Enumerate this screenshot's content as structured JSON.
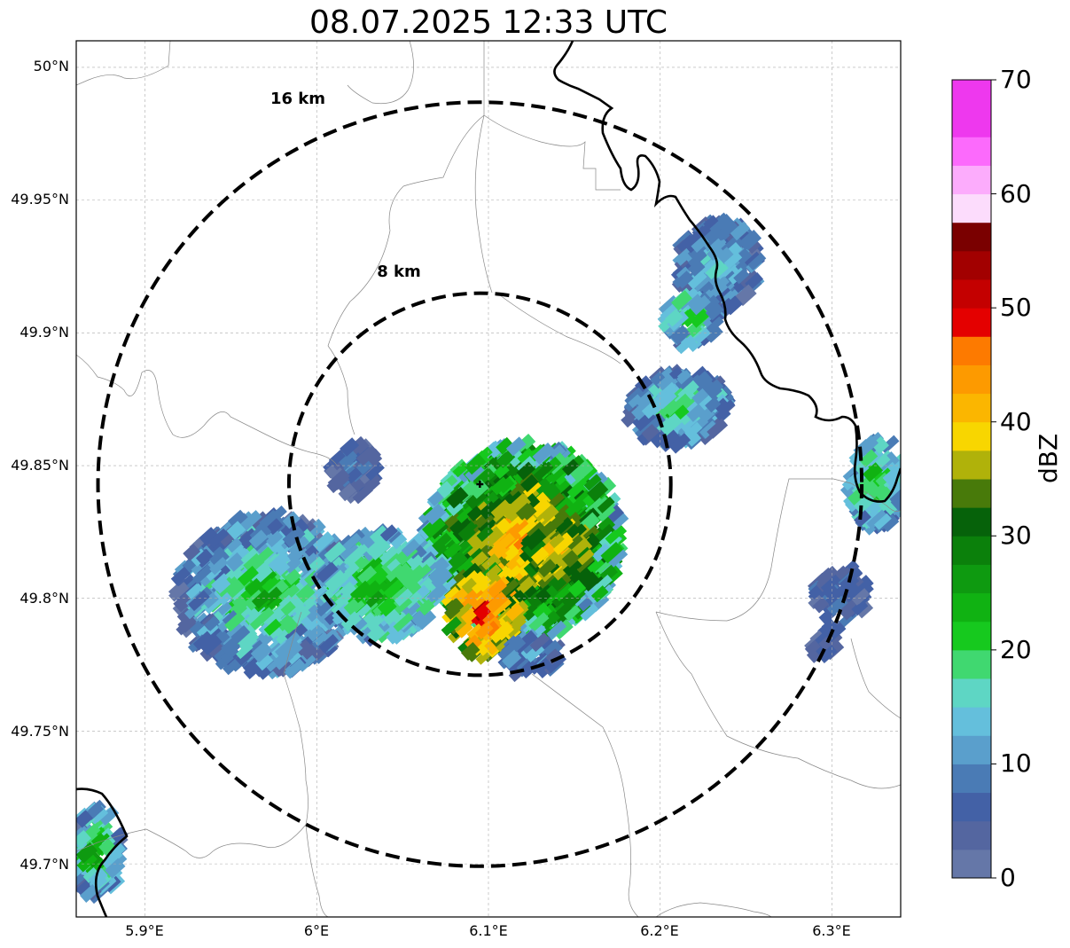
{
  "map": {
    "title": "08.07.2025 12:33 UTC",
    "latitude_ticks": [
      "50°N",
      "49.95°N",
      "49.9°N",
      "49.85°N",
      "49.8°N",
      "49.75°N",
      "49.7°N"
    ],
    "longitude_ticks": [
      "5.9°E",
      "6°E",
      "6.1°E",
      "6.2°E",
      "6.3°E"
    ],
    "range_rings": [
      {
        "label": "16 km",
        "radius_km": 16
      },
      {
        "label": "8 km",
        "radius_km": 8
      }
    ],
    "radar_site": {
      "lon": 6.095,
      "lat": 49.843
    },
    "view": {
      "lon_min": 5.86,
      "lon_max": 6.34,
      "lat_min": 49.68,
      "lat_max": 50.01
    },
    "gridlines": true
  },
  "colorbar": {
    "label": "dBZ",
    "ticks": [
      "0",
      "10",
      "20",
      "30",
      "40",
      "50",
      "60",
      "70"
    ],
    "min": 0,
    "max": 70,
    "step": 2.5,
    "colors": [
      "#6577a8",
      "#5466a0",
      "#4361a6",
      "#4a7bb5",
      "#5a9fcc",
      "#64bfdc",
      "#5ed6c4",
      "#40d870",
      "#16c91e",
      "#10b212",
      "#0e9a10",
      "#0b800b",
      "#06620a",
      "#487a0a",
      "#b0b20a",
      "#f8d600",
      "#fbb600",
      "#fd9a00",
      "#fd7a00",
      "#e40000",
      "#c40000",
      "#a20000",
      "#7a0000",
      "#fcdcfc",
      "#fcacfc",
      "#fc6afc",
      "#ee38ee",
      "#ee38ee"
    ]
  }
}
